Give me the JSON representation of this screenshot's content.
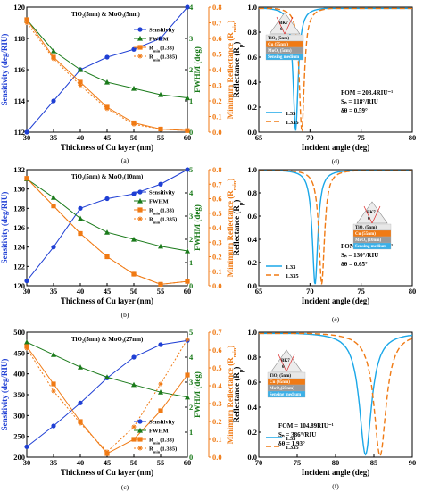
{
  "chart_data": [
    {
      "type": "line",
      "panel_label": "(a)",
      "title": "TiO₂(5nm) & MoO₃(5nm)",
      "xlabel": "Thickness of Cu layer (nm)",
      "ylabel": "Sensitivity (deg/RIU)",
      "y2label": "FWHM (deg)",
      "y3label": "Minimum Reflectance (R_min)",
      "x": [
        30,
        35,
        40,
        45,
        50,
        55,
        60
      ],
      "xlim": [
        30,
        60
      ],
      "xticks": [
        30,
        35,
        40,
        45,
        50,
        55,
        60
      ],
      "ylim": [
        112,
        120
      ],
      "yticks": [
        112,
        114,
        116,
        118,
        120
      ],
      "y2lim": [
        0,
        4
      ],
      "y2ticks": [
        0,
        1,
        2,
        3,
        4
      ],
      "y3lim": [
        0,
        0.8
      ],
      "y3ticks": [
        0.0,
        0.1,
        0.2,
        0.3,
        0.4,
        0.5,
        0.6,
        0.7,
        0.8
      ],
      "series": [
        {
          "name": "Sensitivity",
          "axis": "y",
          "color": "#1f3fd4",
          "marker": "circle",
          "dash": "",
          "values": [
            112.0,
            114.0,
            116.0,
            116.8,
            117.3,
            118.0,
            120.0
          ]
        },
        {
          "name": "FWHM",
          "axis": "y2",
          "color": "#1a7a1a",
          "marker": "triangle",
          "dash": "",
          "values": [
            3.6,
            2.6,
            2.0,
            1.6,
            1.4,
            1.2,
            1.1
          ]
        },
        {
          "name": "R_min(1.33)",
          "axis": "y3",
          "color": "#f07a14",
          "marker": "square",
          "dash": "",
          "values": [
            0.72,
            0.48,
            0.32,
            0.16,
            0.06,
            0.02,
            0.01
          ]
        },
        {
          "name": "R_min(1.335)",
          "axis": "y3",
          "color": "#f07a14",
          "marker": "star",
          "dash": "2,2",
          "values": [
            0.7,
            0.47,
            0.3,
            0.15,
            0.05,
            0.02,
            0.01
          ]
        }
      ],
      "legend": "right"
    },
    {
      "type": "line",
      "panel_label": "(d)",
      "xlabel": "Incident angle (deg)",
      "ylabel": "Reflectance (R_p)",
      "xlim": [
        65,
        80
      ],
      "xticks": [
        65,
        70,
        75,
        80
      ],
      "ylim": [
        0,
        1
      ],
      "yticks": [
        0.0,
        0.2,
        0.4,
        0.6,
        0.8,
        1.0
      ],
      "series": [
        {
          "name": "1.33",
          "resonance_angle": 68.6,
          "fwhm": 0.59,
          "rmin": 0.01,
          "color": "#1aa7e8",
          "dash": ""
        },
        {
          "name": "1.335",
          "resonance_angle": 69.2,
          "fwhm": 0.59,
          "rmin": 0.01,
          "color": "#f07a14",
          "dash": "6,3"
        }
      ],
      "annotations": [
        "FOM = 203.4RIU⁻¹",
        "Sₙ = 118°/RIU",
        "δθ = 0.59°"
      ],
      "inset": {
        "prism": "BK7",
        "theta": "θ",
        "layers": [
          "TiO₂ (5nm)",
          "Cu (55nm)",
          "MoO₃ (5nm)",
          "Sensing medium"
        ]
      },
      "legend": "bottom-left"
    },
    {
      "type": "line",
      "panel_label": "(b)",
      "title": "TiO₂(5nm) & MoO₃(10nm)",
      "xlabel": "Thickness of Cu layer (nm)",
      "ylabel": "Sensitivity (deg/RIU)",
      "y2label": "FWHM (deg)",
      "y3label": "Minimum Reflectance (R_min)",
      "x": [
        30,
        35,
        40,
        45,
        50,
        55,
        60
      ],
      "xlim": [
        30,
        60
      ],
      "xticks": [
        30,
        35,
        40,
        45,
        50,
        55,
        60
      ],
      "ylim": [
        120,
        132
      ],
      "yticks": [
        120,
        122,
        124,
        126,
        128,
        130,
        132
      ],
      "y2lim": [
        0,
        5
      ],
      "y2ticks": [
        0,
        1,
        2,
        3,
        4,
        5
      ],
      "y3lim": [
        0,
        0.8
      ],
      "y3ticks": [
        0.0,
        0.1,
        0.2,
        0.3,
        0.4,
        0.5,
        0.6,
        0.7,
        0.8
      ],
      "series": [
        {
          "name": "Sensitivity",
          "axis": "y",
          "color": "#1f3fd4",
          "marker": "circle",
          "dash": "",
          "values": [
            120.5,
            124.0,
            128.0,
            129.0,
            129.5,
            130.5,
            132.0
          ]
        },
        {
          "name": "FWHM",
          "axis": "y2",
          "color": "#1a7a1a",
          "marker": "triangle",
          "dash": "",
          "values": [
            4.6,
            3.8,
            2.9,
            2.3,
            2.0,
            1.7,
            1.5
          ]
        },
        {
          "name": "R_min(1.33)",
          "axis": "y3",
          "color": "#f07a14",
          "marker": "square",
          "dash": "",
          "values": [
            0.74,
            0.55,
            0.36,
            0.2,
            0.08,
            0.01,
            0.03
          ]
        },
        {
          "name": "R_min(1.335)",
          "axis": "y3",
          "color": "#f07a14",
          "marker": "star",
          "dash": "2,2",
          "values": [
            0.74,
            0.55,
            0.36,
            0.2,
            0.08,
            0.01,
            0.03
          ]
        }
      ],
      "legend": "right"
    },
    {
      "type": "line",
      "panel_label": "(e)",
      "xlabel": "Incident angle (deg)",
      "ylabel": "Reflectance (R_p)",
      "xlim": [
        65,
        80
      ],
      "xticks": [
        65,
        70,
        75,
        80
      ],
      "ylim": [
        0,
        1
      ],
      "yticks": [
        0.0,
        0.2,
        0.4,
        0.6,
        0.8,
        1.0
      ],
      "series": [
        {
          "name": "1.33",
          "resonance_angle": 70.5,
          "fwhm": 0.65,
          "rmin": 0.01,
          "color": "#1aa7e8",
          "dash": ""
        },
        {
          "name": "1.335",
          "resonance_angle": 71.15,
          "fwhm": 0.65,
          "rmin": 0.01,
          "color": "#f07a14",
          "dash": "6,3"
        }
      ],
      "annotations": [
        "FOM = 173.3RIU⁻¹",
        "Sₙ = 130°/RIU",
        "δθ = 0.65°"
      ],
      "inset": {
        "prism": "BK7",
        "theta": "θ",
        "layers": [
          "TiO₂ (5nm)",
          "Cu (55nm)",
          "MoO₃ (10nm)",
          "Sensing medium"
        ]
      },
      "legend": "bottom-left"
    },
    {
      "type": "line",
      "panel_label": "(c)",
      "title": "TiO₂(5nm) & MoO₃(27nm)",
      "xlabel": "Thickness of Cu layer (nm)",
      "ylabel": "Sensitivity (deg/RIU)",
      "y2label": "FWHM (deg)",
      "y3label": "Minimum Reflectance (R_min)",
      "x": [
        30,
        35,
        40,
        45,
        50,
        55,
        60
      ],
      "xlim": [
        30,
        60
      ],
      "xticks": [
        30,
        35,
        40,
        45,
        50,
        55,
        60
      ],
      "ylim": [
        200,
        500
      ],
      "yticks": [
        200,
        250,
        300,
        350,
        400,
        450,
        500
      ],
      "y2lim": [
        0,
        5
      ],
      "y2ticks": [
        0,
        1,
        2,
        3,
        4,
        5
      ],
      "y3lim": [
        0,
        0.7
      ],
      "y3ticks": [
        0.0,
        0.1,
        0.2,
        0.3,
        0.4,
        0.5,
        0.6,
        0.7
      ],
      "series": [
        {
          "name": "Sensitivity",
          "axis": "y",
          "color": "#1f3fd4",
          "marker": "circle",
          "dash": "",
          "values": [
            225,
            275,
            330,
            390,
            440,
            470,
            480
          ]
        },
        {
          "name": "FWHM",
          "axis": "y2",
          "color": "#1a7a1a",
          "marker": "triangle",
          "dash": "",
          "values": [
            4.6,
            4.1,
            3.6,
            3.2,
            2.9,
            2.6,
            2.4
          ]
        },
        {
          "name": "R_min(1.33)",
          "axis": "y3",
          "color": "#f07a14",
          "marker": "square",
          "dash": "",
          "values": [
            0.62,
            0.41,
            0.2,
            0.02,
            0.1,
            0.26,
            0.46
          ]
        },
        {
          "name": "R_min(1.335)",
          "axis": "y3",
          "color": "#f07a14",
          "marker": "star",
          "dash": "2,2",
          "values": [
            0.61,
            0.37,
            0.19,
            0.03,
            0.17,
            0.41,
            0.66
          ]
        }
      ],
      "legend": "bottom-right"
    },
    {
      "type": "line",
      "panel_label": "(f)",
      "xlabel": "Incident angle (deg)",
      "ylabel": "Reflectance (R_p)",
      "xlim": [
        70,
        90
      ],
      "xticks": [
        70,
        75,
        80,
        85,
        90
      ],
      "ylim": [
        0,
        1
      ],
      "yticks": [
        0.0,
        0.2,
        0.4,
        0.6,
        0.8,
        1.0
      ],
      "series": [
        {
          "name": "1.33",
          "resonance_angle": 83.9,
          "fwhm": 1.93,
          "rmin": 0.02,
          "color": "#1aa7e8",
          "dash": ""
        },
        {
          "name": "1.335",
          "resonance_angle": 85.8,
          "fwhm": 1.93,
          "rmin": 0.01,
          "color": "#f07a14",
          "dash": "6,3"
        }
      ],
      "annotations": [
        "FOM = 104.89RIU⁻¹",
        "Sₙ = 386°/RIU",
        "δθ = 1.93°"
      ],
      "inset": {
        "prism": "BK7",
        "theta": "θ",
        "layers": [
          "TiO₂ (5nm)",
          "Cu (45nm)",
          "MoO₃(27nm)",
          "Sensing medium"
        ]
      },
      "legend": "bottom-left"
    }
  ]
}
